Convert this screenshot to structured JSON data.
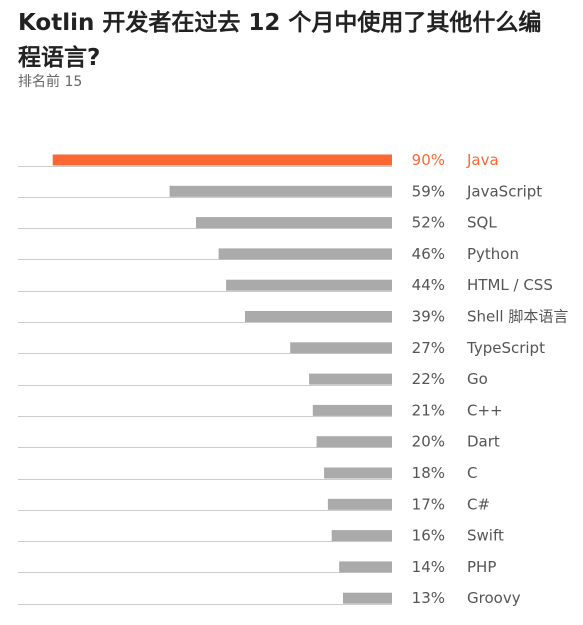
{
  "title": "Kotlin 开发者在过去 12 个月中使用了其他什么编程语言?",
  "subtitle": "排名前 15",
  "colors": {
    "highlight": "#fd6733",
    "bar": "#aaaaaa",
    "baseline": "#cccccc",
    "text": "#555555"
  },
  "chart_data": {
    "type": "bar",
    "orientation": "horizontal",
    "title": "Kotlin 开发者在过去 12 个月中使用了其他什么编程语言?",
    "subtitle": "排名前 15",
    "xlim": [
      0,
      100
    ],
    "categories": [
      "Java",
      "JavaScript",
      "SQL",
      "Python",
      "HTML / CSS",
      "Shell 脚本语言",
      "TypeScript",
      "Go",
      "C++",
      "Dart",
      "C",
      "C#",
      "Swift",
      "PHP",
      "Groovy"
    ],
    "values": [
      90,
      59,
      52,
      46,
      44,
      39,
      27,
      22,
      21,
      20,
      18,
      17,
      16,
      14,
      13
    ],
    "value_labels": [
      "90%",
      "59%",
      "52%",
      "46%",
      "44%",
      "39%",
      "27%",
      "22%",
      "21%",
      "20%",
      "18%",
      "17%",
      "16%",
      "14%",
      "13%"
    ],
    "highlighted_category": "Java",
    "grid": false
  }
}
